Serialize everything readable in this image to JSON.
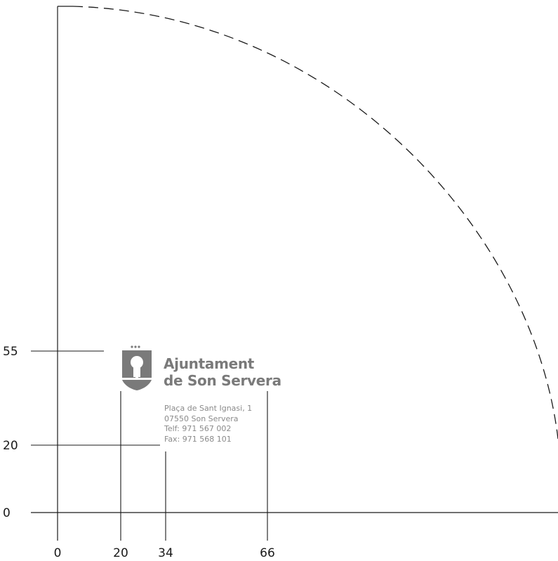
{
  "x_ticks": [
    {
      "value": 0,
      "label": "0"
    },
    {
      "value": 20,
      "label": "20"
    },
    {
      "value": 34,
      "label": "34"
    },
    {
      "value": 66,
      "label": "66"
    }
  ],
  "y_ticks": [
    {
      "value": 0,
      "label": "0"
    },
    {
      "value": 20,
      "label": "20"
    },
    {
      "value": 55,
      "label": "55"
    }
  ],
  "logo": {
    "name_line1": "Ajuntament",
    "name_line2": "de Son Servera",
    "address": [
      "Plaça de Sant Ignasi, 1",
      "07550 Son Servera",
      "Telf: 971 567 002",
      "Fax: 971 568 101"
    ]
  },
  "colors": {
    "logo_grey": "#7a7a7a",
    "line": "#1a1a1a"
  }
}
